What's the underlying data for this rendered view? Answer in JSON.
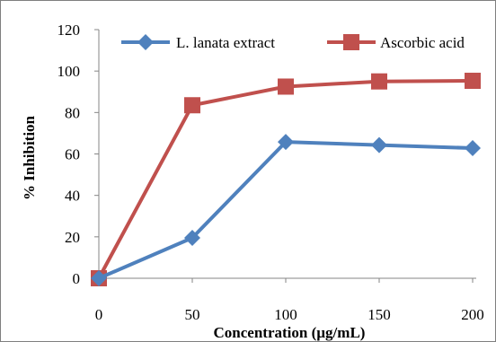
{
  "chart_data": {
    "type": "line",
    "title": "",
    "xlabel": "Concentration (µg/mL)",
    "ylabel": "% Inhibition",
    "x": [
      0,
      50,
      100,
      150,
      200
    ],
    "xlim": [
      0,
      200
    ],
    "ylim": [
      0,
      120
    ],
    "xticks": [
      "0",
      "50",
      "100",
      "150",
      "200"
    ],
    "yticks": [
      "0",
      "20",
      "40",
      "60",
      "80",
      "100",
      "120"
    ],
    "grid": false,
    "legend_position": "top-right",
    "series": [
      {
        "name": "L. lanata extract",
        "values": [
          0,
          19.5,
          65.8,
          64.3,
          62.8
        ],
        "color": "#4f81bd",
        "marker": "diamond"
      },
      {
        "name": "Ascorbic acid",
        "values": [
          0,
          83.5,
          92.5,
          95,
          95.3
        ],
        "color": "#c0504d",
        "marker": "square"
      }
    ]
  }
}
